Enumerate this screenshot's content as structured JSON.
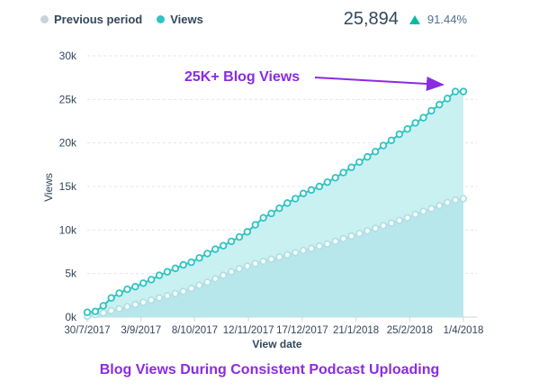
{
  "legend": {
    "previous_label": "Previous period",
    "views_label": "Views"
  },
  "summary": {
    "total": "25,894",
    "change": "91.44%",
    "trend_icon": "triangle-up-icon"
  },
  "annotation": {
    "text": "25K+ Blog Views"
  },
  "caption": "Blog Views During Consistent Podcast Uploading",
  "colors": {
    "views": "#2ec4c4",
    "views_fill": "#c9f1f1",
    "previous": "#b0e0e6",
    "previous_fill": "#a8dfe3",
    "annotation": "#8a2be2",
    "trend_up": "#00bda5",
    "grid": "#e0e6eb",
    "axis_text": "#33475b"
  },
  "chart_data": {
    "type": "area",
    "xlabel": "View date",
    "ylabel": "Views",
    "ylim": [
      0,
      30000
    ],
    "y_ticks": [
      0,
      5000,
      10000,
      15000,
      20000,
      25000,
      30000
    ],
    "y_tick_labels": [
      "0k",
      "5k",
      "10k",
      "15k",
      "20k",
      "25k",
      "30k"
    ],
    "x_tick_labels": [
      "30/7/2017",
      "3/9/2017",
      "8/10/2017",
      "12/11/2017",
      "17/12/2017",
      "21/1/2018",
      "25/2/2018",
      "1/4/2018"
    ],
    "grid": true,
    "series": [
      {
        "name": "Views",
        "values": [
          550,
          650,
          1300,
          2200,
          2750,
          3200,
          3500,
          3900,
          4300,
          4800,
          5200,
          5600,
          6000,
          6300,
          6800,
          7300,
          7800,
          8200,
          8700,
          9200,
          9800,
          10600,
          11400,
          11900,
          12500,
          13100,
          13600,
          14200,
          14600,
          15000,
          15500,
          16000,
          16600,
          17200,
          17800,
          18400,
          19000,
          19700,
          20300,
          21000,
          21600,
          22300,
          22900,
          23700,
          24400,
          25100,
          25900,
          25900
        ]
      },
      {
        "name": "Previous period",
        "values": [
          100,
          300,
          500,
          750,
          950,
          1200,
          1450,
          1700,
          1950,
          2200,
          2450,
          2700,
          2950,
          3300,
          3650,
          4000,
          4400,
          4800,
          5200,
          5550,
          5850,
          6150,
          6400,
          6650,
          6900,
          7150,
          7400,
          7650,
          7900,
          8150,
          8400,
          8700,
          9000,
          9300,
          9600,
          9900,
          10200,
          10500,
          10800,
          11100,
          11400,
          11800,
          12150,
          12450,
          12800,
          13150,
          13450,
          13600
        ]
      }
    ]
  }
}
